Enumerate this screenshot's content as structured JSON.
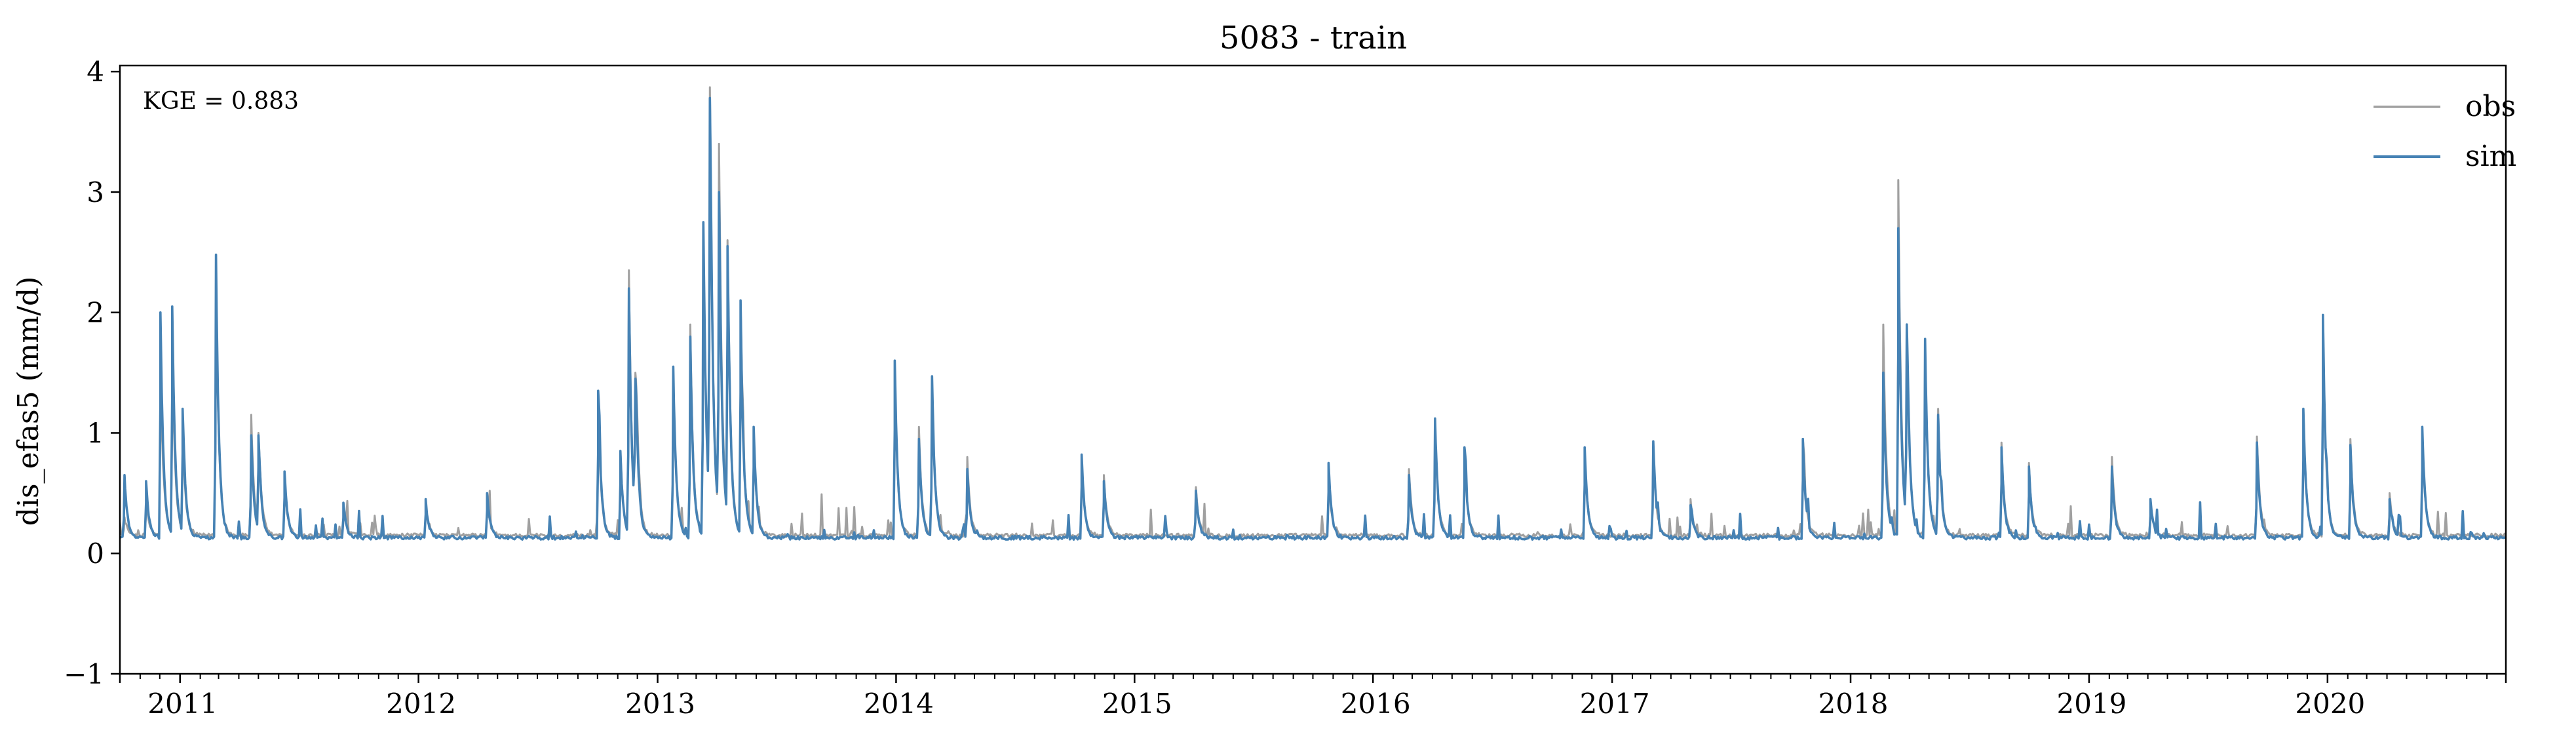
{
  "chart_data": {
    "type": "line",
    "title": "5083 - train",
    "xlabel": "",
    "ylabel": "dis_efas5 (mm/d)",
    "annotation": "KGE = 0.883",
    "xlim": [
      "2010-10-01",
      "2020-09-30"
    ],
    "ylim": [
      -1,
      4.05
    ],
    "xticks": [
      {
        "date": "2011-01-01",
        "label": "2011"
      },
      {
        "date": "2012-01-01",
        "label": "2012"
      },
      {
        "date": "2013-01-01",
        "label": "2013"
      },
      {
        "date": "2014-01-01",
        "label": "2014"
      },
      {
        "date": "2015-01-01",
        "label": "2015"
      },
      {
        "date": "2016-01-01",
        "label": "2016"
      },
      {
        "date": "2017-01-01",
        "label": "2017"
      },
      {
        "date": "2018-01-01",
        "label": "2018"
      },
      {
        "date": "2019-01-01",
        "label": "2019"
      },
      {
        "date": "2020-01-01",
        "label": "2020"
      }
    ],
    "yticks": [
      {
        "value": -1,
        "label": "−1"
      },
      {
        "value": 0,
        "label": "0"
      },
      {
        "value": 1,
        "label": "1"
      },
      {
        "value": 2,
        "label": "2"
      },
      {
        "value": 3,
        "label": "3"
      },
      {
        "value": 4,
        "label": "4"
      }
    ],
    "grid": false,
    "legend_position": "top-right",
    "baseline": {
      "obs": 0.15,
      "sim": 0.13
    },
    "series": [
      {
        "name": "obs",
        "color": "#a0a0a0",
        "peaks": [
          [
            "2010-10-08",
            0.3
          ],
          [
            "2010-11-10",
            0.45
          ],
          [
            "2010-12-02",
            1.6
          ],
          [
            "2010-12-20",
            1.7
          ],
          [
            "2011-01-05",
            1.0
          ],
          [
            "2011-02-25",
            2.3
          ],
          [
            "2011-04-20",
            1.15
          ],
          [
            "2011-05-01",
            1.0
          ],
          [
            "2011-06-10",
            0.6
          ],
          [
            "2011-09-08",
            0.4
          ],
          [
            "2012-01-12",
            0.4
          ],
          [
            "2012-04-15",
            0.4
          ],
          [
            "2012-10-02",
            1.2
          ],
          [
            "2012-11-05",
            0.85
          ],
          [
            "2012-11-18",
            2.35
          ],
          [
            "2012-11-28",
            1.5
          ],
          [
            "2013-01-25",
            1.5
          ],
          [
            "2013-02-20",
            1.9
          ],
          [
            "2013-03-12",
            2.7
          ],
          [
            "2013-03-22",
            3.87
          ],
          [
            "2013-04-05",
            3.4
          ],
          [
            "2013-04-18",
            2.6
          ],
          [
            "2013-05-08",
            2.1
          ],
          [
            "2013-05-28",
            1.0
          ],
          [
            "2013-12-30",
            1.5
          ],
          [
            "2014-02-05",
            1.05
          ],
          [
            "2014-02-25",
            1.45
          ],
          [
            "2014-04-20",
            0.8
          ],
          [
            "2014-10-12",
            0.8
          ],
          [
            "2014-11-15",
            0.65
          ],
          [
            "2015-04-05",
            0.55
          ],
          [
            "2015-10-25",
            0.65
          ],
          [
            "2016-02-25",
            0.7
          ],
          [
            "2016-04-05",
            1.1
          ],
          [
            "2016-05-20",
            0.85
          ],
          [
            "2016-11-20",
            0.85
          ],
          [
            "2017-03-05",
            0.9
          ],
          [
            "2017-05-01",
            0.45
          ],
          [
            "2017-10-20",
            0.95
          ],
          [
            "2018-02-20",
            1.9
          ],
          [
            "2018-03-15",
            3.1
          ],
          [
            "2018-03-28",
            1.8
          ],
          [
            "2018-04-25",
            1.75
          ],
          [
            "2018-05-15",
            1.2
          ],
          [
            "2018-08-20",
            0.92
          ],
          [
            "2018-10-01",
            0.75
          ],
          [
            "2019-02-05",
            0.8
          ],
          [
            "2019-04-05",
            0.45
          ],
          [
            "2019-09-15",
            0.97
          ],
          [
            "2019-11-25",
            1.2
          ],
          [
            "2019-12-25",
            1.95
          ],
          [
            "2020-02-05",
            0.95
          ],
          [
            "2020-04-05",
            0.5
          ],
          [
            "2020-05-25",
            1.0
          ]
        ]
      },
      {
        "name": "sim",
        "color": "#4682b4",
        "peaks": [
          [
            "2010-10-08",
            0.65
          ],
          [
            "2010-11-10",
            0.6
          ],
          [
            "2010-12-02",
            2.0
          ],
          [
            "2010-12-20",
            2.05
          ],
          [
            "2011-01-05",
            1.2
          ],
          [
            "2011-02-25",
            2.48
          ],
          [
            "2011-04-20",
            0.98
          ],
          [
            "2011-05-01",
            0.98
          ],
          [
            "2011-06-10",
            0.68
          ],
          [
            "2011-09-08",
            0.42
          ],
          [
            "2012-01-12",
            0.45
          ],
          [
            "2012-04-15",
            0.5
          ],
          [
            "2012-10-02",
            1.35
          ],
          [
            "2012-11-05",
            0.85
          ],
          [
            "2012-11-18",
            2.2
          ],
          [
            "2012-11-28",
            1.45
          ],
          [
            "2013-01-25",
            1.55
          ],
          [
            "2013-02-20",
            1.8
          ],
          [
            "2013-03-12",
            2.75
          ],
          [
            "2013-03-22",
            3.78
          ],
          [
            "2013-04-05",
            3.0
          ],
          [
            "2013-04-18",
            2.55
          ],
          [
            "2013-05-08",
            2.1
          ],
          [
            "2013-05-28",
            1.05
          ],
          [
            "2013-12-30",
            1.6
          ],
          [
            "2014-02-05",
            0.95
          ],
          [
            "2014-02-25",
            1.47
          ],
          [
            "2014-04-20",
            0.7
          ],
          [
            "2014-10-12",
            0.82
          ],
          [
            "2014-11-15",
            0.6
          ],
          [
            "2015-04-05",
            0.52
          ],
          [
            "2015-10-25",
            0.75
          ],
          [
            "2016-02-25",
            0.65
          ],
          [
            "2016-04-05",
            1.12
          ],
          [
            "2016-05-20",
            0.88
          ],
          [
            "2016-11-20",
            0.88
          ],
          [
            "2017-03-05",
            0.93
          ],
          [
            "2017-05-01",
            0.4
          ],
          [
            "2017-10-20",
            0.95
          ],
          [
            "2018-02-20",
            1.5
          ],
          [
            "2018-03-15",
            2.7
          ],
          [
            "2018-03-28",
            1.9
          ],
          [
            "2018-04-25",
            1.78
          ],
          [
            "2018-05-15",
            1.15
          ],
          [
            "2018-08-20",
            0.88
          ],
          [
            "2018-10-01",
            0.72
          ],
          [
            "2019-02-05",
            0.72
          ],
          [
            "2019-04-05",
            0.45
          ],
          [
            "2019-09-15",
            0.92
          ],
          [
            "2019-11-25",
            1.2
          ],
          [
            "2019-12-25",
            1.98
          ],
          [
            "2020-02-05",
            0.9
          ],
          [
            "2020-04-05",
            0.45
          ],
          [
            "2020-05-25",
            1.05
          ]
        ]
      }
    ]
  }
}
